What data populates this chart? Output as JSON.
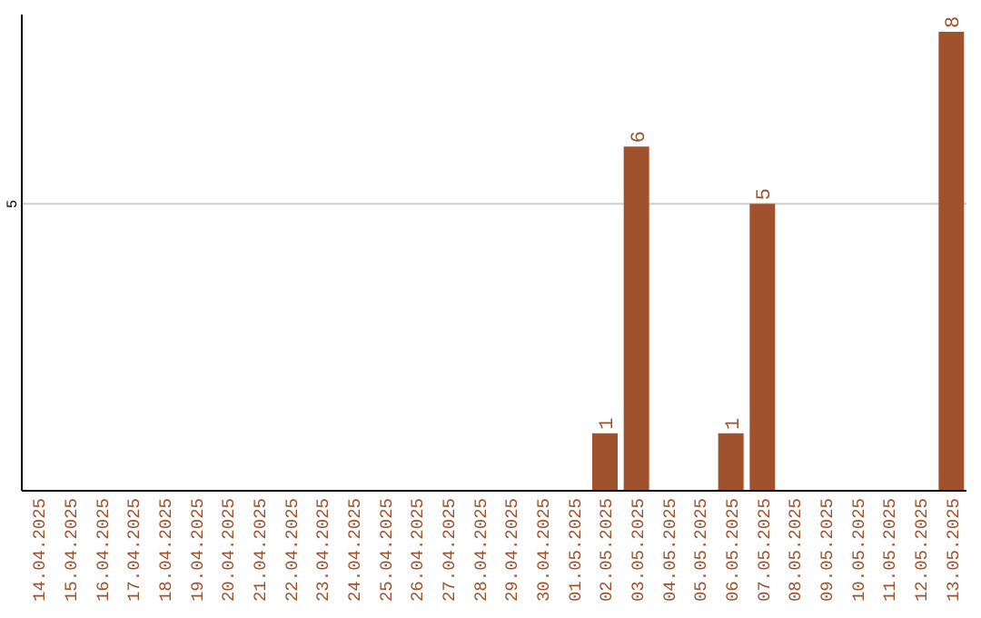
{
  "chart_data": {
    "type": "bar",
    "categories": [
      "14.04.2025",
      "15.04.2025",
      "16.04.2025",
      "17.04.2025",
      "18.04.2025",
      "19.04.2025",
      "20.04.2025",
      "21.04.2025",
      "22.04.2025",
      "23.04.2025",
      "24.04.2025",
      "25.04.2025",
      "26.04.2025",
      "27.04.2025",
      "28.04.2025",
      "29.04.2025",
      "30.04.2025",
      "01.05.2025",
      "02.05.2025",
      "03.05.2025",
      "04.05.2025",
      "05.05.2025",
      "06.05.2025",
      "07.05.2025",
      "08.05.2025",
      "09.05.2025",
      "10.05.2025",
      "11.05.2025",
      "12.05.2025",
      "13.05.2025"
    ],
    "values": [
      null,
      null,
      null,
      null,
      null,
      null,
      null,
      null,
      null,
      null,
      null,
      null,
      null,
      null,
      null,
      null,
      null,
      null,
      1,
      6,
      null,
      null,
      1,
      5,
      null,
      null,
      null,
      null,
      null,
      8
    ],
    "data_labels": true,
    "color": "#a0522d",
    "ylim": [
      0,
      8.3
    ],
    "yticks": [
      5
    ],
    "grid": "y"
  }
}
